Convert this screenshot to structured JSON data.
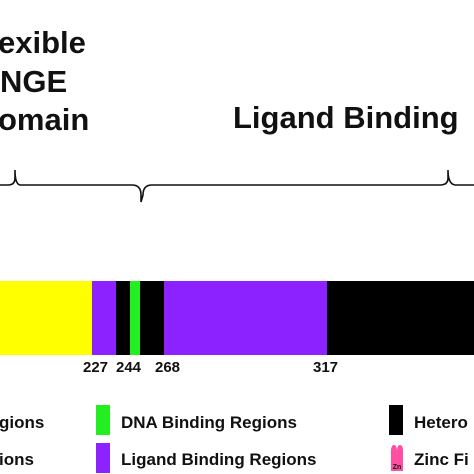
{
  "domains": {
    "hinge_line1": "exible",
    "hinge_line2": "NGE",
    "hinge_line3": "omain",
    "ligand": "Ligand Binding"
  },
  "positions": [
    "227",
    "244",
    "268",
    "317"
  ],
  "legend": {
    "left_partial": "gions",
    "left_partial_2": "ions",
    "dna": "DNA Binding Regions",
    "ligand": "Ligand Binding Regions",
    "hetero": "Hetero",
    "zinc": "Zinc Fi",
    "zinc_symbol": "Zn"
  },
  "colors": {
    "hinge": "#ffff00",
    "ligand_region": "#8b22ff",
    "dna": "#22ee22",
    "hetero": "#000000",
    "zinc": "#ff4fa0"
  }
}
